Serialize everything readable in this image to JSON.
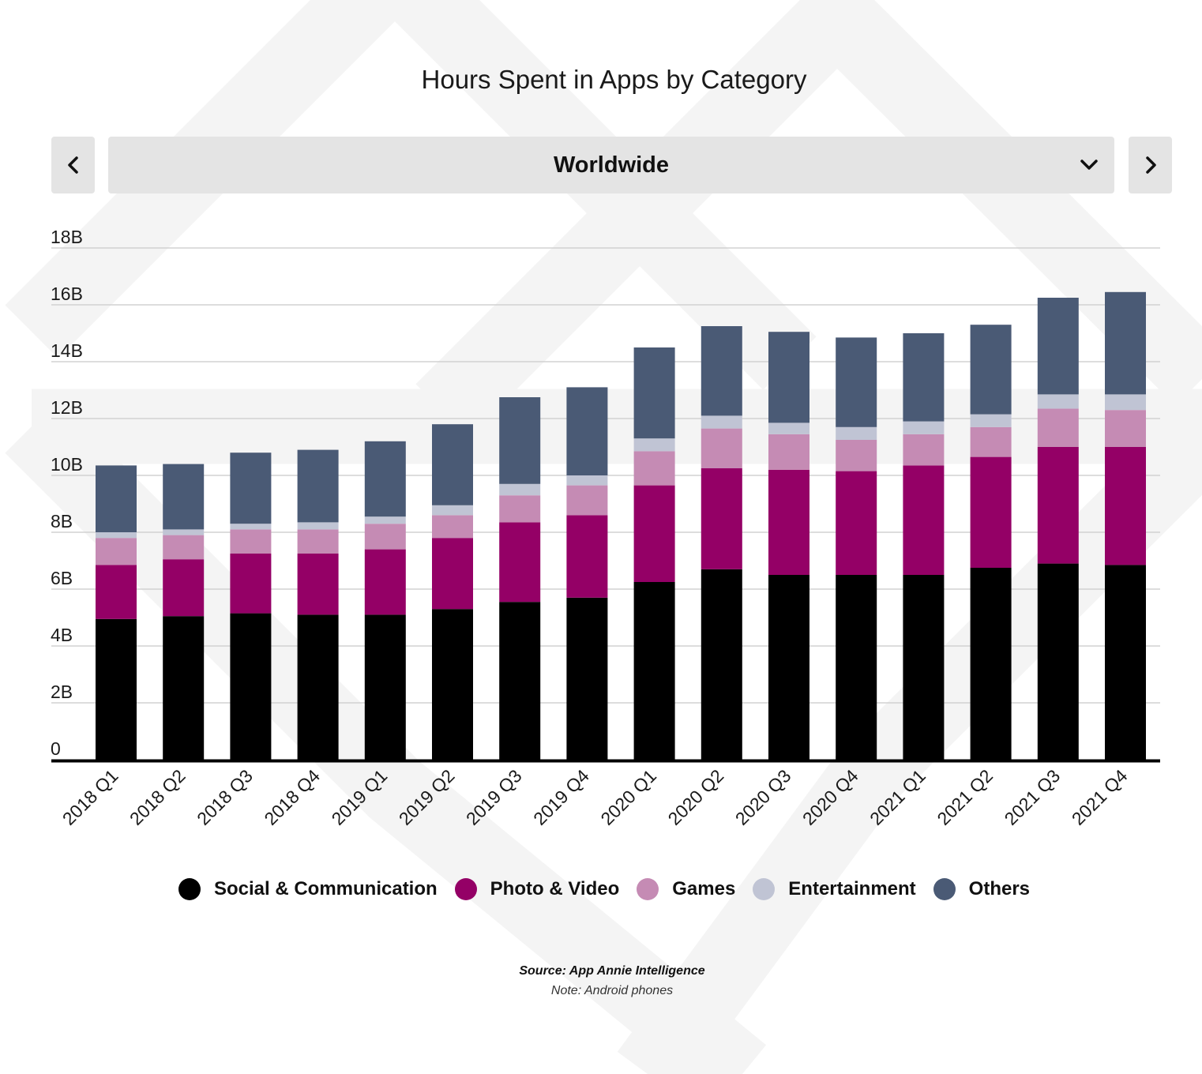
{
  "header": {
    "title": "Hours Spent in Apps by Category"
  },
  "region_selector": {
    "selected": "Worldwide"
  },
  "nav": {
    "prev_icon": "chevron-left-icon",
    "next_icon": "chevron-right-icon"
  },
  "footer": {
    "source": "Source: App Annie Intelligence",
    "note": "Note: Android phones"
  },
  "chart_data": {
    "type": "bar",
    "stacked": true,
    "title": "Hours Spent in Apps by Category",
    "xlabel": "",
    "ylabel": "",
    "ylim": [
      0,
      18
    ],
    "y_unit": "B",
    "y_ticks": [
      0,
      2,
      4,
      6,
      8,
      10,
      12,
      14,
      16,
      18
    ],
    "y_tick_labels": [
      "0",
      "2B",
      "4B",
      "6B",
      "8B",
      "10B",
      "12B",
      "14B",
      "16B",
      "18B"
    ],
    "grid": true,
    "legend_position": "bottom",
    "categories": [
      "2018 Q1",
      "2018 Q2",
      "2018 Q3",
      "2018 Q4",
      "2019 Q1",
      "2019 Q2",
      "2019 Q3",
      "2019 Q4",
      "2020 Q1",
      "2020 Q2",
      "2020 Q3",
      "2020 Q4",
      "2021 Q1",
      "2021 Q2",
      "2021 Q3",
      "2021 Q4"
    ],
    "series": [
      {
        "name": "Social & Communication",
        "color": "#000000",
        "values": [
          4.95,
          5.05,
          5.15,
          5.1,
          5.1,
          5.3,
          5.55,
          5.7,
          6.25,
          6.7,
          6.5,
          6.5,
          6.5,
          6.75,
          6.9,
          6.85
        ]
      },
      {
        "name": "Photo & Video",
        "color": "#940066",
        "values": [
          1.9,
          2.0,
          2.1,
          2.15,
          2.3,
          2.5,
          2.8,
          2.9,
          3.4,
          3.55,
          3.7,
          3.65,
          3.85,
          3.9,
          4.1,
          4.15
        ]
      },
      {
        "name": "Games",
        "color": "#c58bb4",
        "values": [
          0.95,
          0.85,
          0.85,
          0.85,
          0.9,
          0.8,
          0.95,
          1.05,
          1.2,
          1.4,
          1.25,
          1.1,
          1.1,
          1.05,
          1.35,
          1.3
        ]
      },
      {
        "name": "Entertainment",
        "color": "#c0c4d4",
        "values": [
          0.2,
          0.2,
          0.2,
          0.25,
          0.25,
          0.35,
          0.4,
          0.35,
          0.45,
          0.45,
          0.4,
          0.45,
          0.45,
          0.45,
          0.5,
          0.55
        ]
      },
      {
        "name": "Others",
        "color": "#4a5a75",
        "values": [
          2.35,
          2.3,
          2.5,
          2.55,
          2.65,
          2.85,
          3.05,
          3.1,
          3.2,
          3.15,
          3.2,
          3.15,
          3.1,
          3.15,
          3.4,
          3.6
        ]
      }
    ]
  }
}
